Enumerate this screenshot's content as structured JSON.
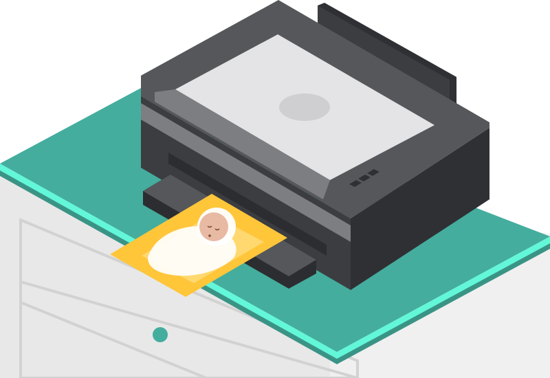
{
  "scene": {
    "subject": "printer-printing-baby-photo",
    "colors": {
      "background": "#ffffff",
      "cabinet_face": "#f0f0f0",
      "cabinet_shade": "#e2e2e2",
      "cabinet_line": "#d2d2d2",
      "tabletop": "#44ad9e",
      "tabletop_edge": "#62f7d8",
      "tabletop_underside": "#3a9486",
      "knob": "#44ad9e",
      "printer_body_dark": "#3c3d40",
      "printer_body_top": "#55575b",
      "printer_body_side": "#2f3033",
      "printer_stripe": "#7c7e82",
      "scanner_lid": "#e4e4e6",
      "scanner_window": "#cfcfd1",
      "tray": "#2c2d30",
      "photo_border": "#ffc63a",
      "photo_inner": "#ffdb7a",
      "blanket": "#ffffff",
      "baby_skin": "#e8b9a3"
    },
    "icons": {
      "control_buttons": "button-row-icon",
      "photo": "baby-photo-icon"
    }
  }
}
